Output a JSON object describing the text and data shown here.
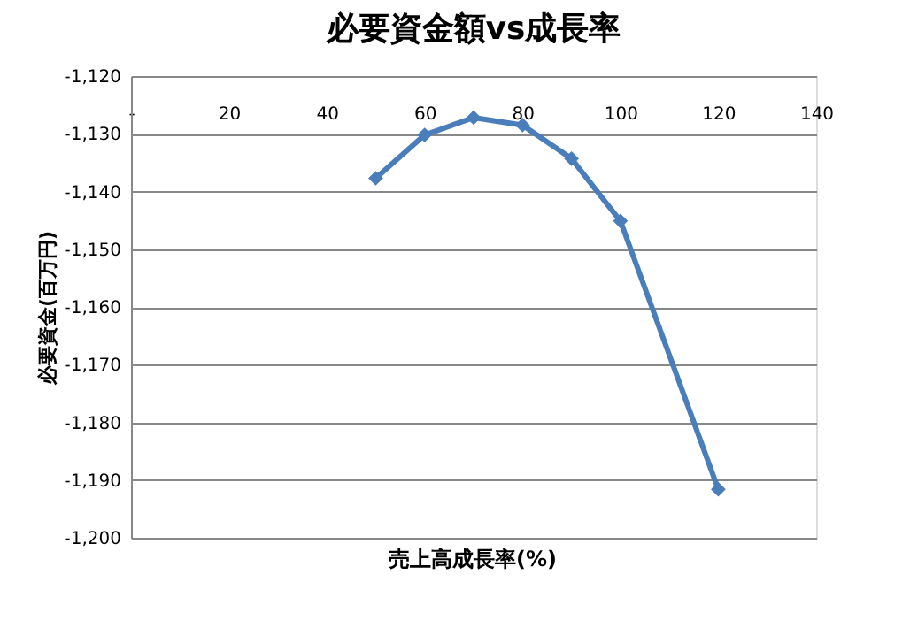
{
  "chart_data": {
    "type": "line",
    "title": "必要資金額vs成長率",
    "xlabel": "売上高成長率(%)",
    "ylabel": "必要資金(百万円)",
    "x": [
      50,
      60,
      70,
      80,
      90,
      100,
      120
    ],
    "series": [
      {
        "color": "#4a7ebb",
        "values": [
          -1137.7,
          -1130.2,
          -1127.2,
          -1128.5,
          -1134.3,
          -1145.1,
          -1191.6
        ]
      }
    ],
    "xlim": [
      0,
      140
    ],
    "xticks": [
      {
        "value": 0,
        "label": "-"
      },
      20,
      40,
      60,
      80,
      100,
      120,
      140
    ],
    "ylim": [
      -1200,
      -1120
    ],
    "yticks": [
      {
        "value": -1200,
        "label": "-1,200"
      },
      {
        "value": -1190,
        "label": "-1,190"
      },
      {
        "value": -1180,
        "label": "-1,180"
      },
      {
        "value": -1170,
        "label": "-1,170"
      },
      {
        "value": -1160,
        "label": "-1,160"
      },
      {
        "value": -1150,
        "label": "-1,150"
      },
      {
        "value": -1140,
        "label": "-1,140"
      },
      {
        "value": -1130,
        "label": "-1,130"
      },
      {
        "value": -1120,
        "label": "-1,120"
      }
    ],
    "grid": "y",
    "legend": false,
    "marker": "diamond",
    "line_style": "solid"
  }
}
